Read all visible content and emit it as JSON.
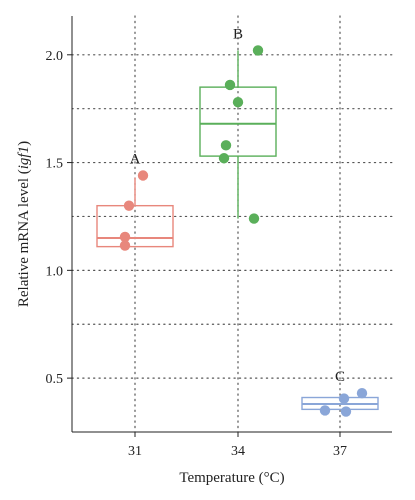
{
  "chart_data": {
    "type": "box",
    "xlabel": "Temperature (°C)",
    "ylabel_prefix": "Relative mRNA level (",
    "ylabel_italic": "igf1",
    "ylabel_suffix": ")",
    "ylim": [
      0.25,
      2.18
    ],
    "y_ticks": [
      0.5,
      1.0,
      1.5,
      2.0
    ],
    "y_tick_labels": [
      "0.5",
      "1.0",
      "1.5",
      "2.0"
    ],
    "y_minor_grid": [
      0.75,
      1.25,
      1.75
    ],
    "grid": "dotted",
    "categories": [
      "31",
      "34",
      "37"
    ],
    "groups": [
      {
        "category": "31",
        "letter": "A",
        "color": "#e8877c",
        "box": {
          "q1": 1.11,
          "median": 1.15,
          "q3": 1.3,
          "whisker_low": 1.11,
          "whisker_high": 1.43
        },
        "points": [
          1.44,
          1.3,
          1.155,
          1.115
        ]
      },
      {
        "category": "34",
        "letter": "B",
        "color": "#5aaf5a",
        "box": {
          "q1": 1.53,
          "median": 1.68,
          "q3": 1.85,
          "whisker_low": 1.24,
          "whisker_high": 2.02
        },
        "points": [
          2.02,
          1.86,
          1.78,
          1.58,
          1.52,
          1.24
        ]
      },
      {
        "category": "37",
        "letter": "C",
        "color": "#8aa6d8",
        "box": {
          "q1": 0.355,
          "median": 0.38,
          "q3": 0.41,
          "whisker_low": 0.355,
          "whisker_high": 0.41
        },
        "points": [
          0.43,
          0.405,
          0.35,
          0.345
        ]
      }
    ]
  }
}
